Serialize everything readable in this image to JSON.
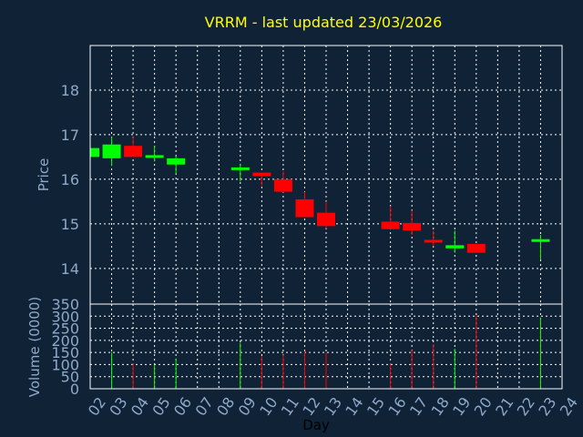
{
  "colors": {
    "background": "#0f2236",
    "frame": "#ffffff",
    "grid": "#ffffff",
    "up": "#00ff00",
    "down": "#ff0000",
    "title": "#ffff00",
    "axis_text": "#8ea9c9",
    "xlabel": "#000000"
  },
  "chart_data": {
    "type": "candlestick",
    "title": "VRRM - last updated 23/03/2026",
    "xlabel": "Day",
    "price_ylabel": "Price",
    "volume_ylabel": "Volume (0000)",
    "x_ticks": [
      "02",
      "03",
      "04",
      "05",
      "06",
      "07",
      "08",
      "09",
      "10",
      "11",
      "12",
      "13",
      "14",
      "15",
      "16",
      "17",
      "18",
      "19",
      "20",
      "21",
      "22",
      "23",
      "24"
    ],
    "price_ylim": [
      13.2,
      19.0
    ],
    "price_yticks": [
      "14",
      "15",
      "16",
      "17",
      "18"
    ],
    "volume_ylim": [
      0,
      350
    ],
    "volume_yticks": [
      "0",
      "50",
      "100",
      "150",
      "200",
      "250",
      "300",
      "350"
    ],
    "grid": true,
    "candles": [
      {
        "day": 2,
        "open": 16.5,
        "high": 16.72,
        "low": 16.5,
        "close": 16.7,
        "volume": 0
      },
      {
        "day": 3,
        "open": 16.47,
        "high": 16.95,
        "low": 16.3,
        "close": 16.78,
        "volume": 150
      },
      {
        "day": 4,
        "open": 16.75,
        "high": 16.95,
        "low": 16.5,
        "close": 16.5,
        "volume": 105
      },
      {
        "day": 5,
        "open": 16.5,
        "high": 16.75,
        "low": 16.4,
        "close": 16.52,
        "volume": 100
      },
      {
        "day": 6,
        "open": 16.33,
        "high": 16.52,
        "low": 16.12,
        "close": 16.47,
        "volume": 125
      },
      {
        "day": 9,
        "open": 16.22,
        "high": 16.35,
        "low": 15.95,
        "close": 16.25,
        "volume": 190
      },
      {
        "day": 10,
        "open": 16.15,
        "high": 16.15,
        "low": 15.85,
        "close": 16.07,
        "volume": 135
      },
      {
        "day": 11,
        "open": 16.0,
        "high": 16.18,
        "low": 15.7,
        "close": 15.72,
        "volume": 140
      },
      {
        "day": 12,
        "open": 15.55,
        "high": 15.72,
        "low": 15.15,
        "close": 15.15,
        "volume": 155
      },
      {
        "day": 13,
        "open": 15.25,
        "high": 15.5,
        "low": 14.9,
        "close": 14.95,
        "volume": 150
      },
      {
        "day": 16,
        "open": 15.05,
        "high": 15.4,
        "low": 14.88,
        "close": 14.88,
        "volume": 105
      },
      {
        "day": 17,
        "open": 15.02,
        "high": 15.3,
        "low": 14.75,
        "close": 14.85,
        "volume": 160
      },
      {
        "day": 18,
        "open": 14.62,
        "high": 14.85,
        "low": 14.5,
        "close": 14.6,
        "volume": 185
      },
      {
        "day": 19,
        "open": 14.45,
        "high": 14.85,
        "low": 14.35,
        "close": 14.52,
        "volume": 165
      },
      {
        "day": 20,
        "open": 14.55,
        "high": 14.55,
        "low": 14.35,
        "close": 14.35,
        "volume": 305
      },
      {
        "day": 23,
        "open": 14.6,
        "high": 14.75,
        "low": 14.2,
        "close": 14.65,
        "volume": 295
      }
    ]
  }
}
